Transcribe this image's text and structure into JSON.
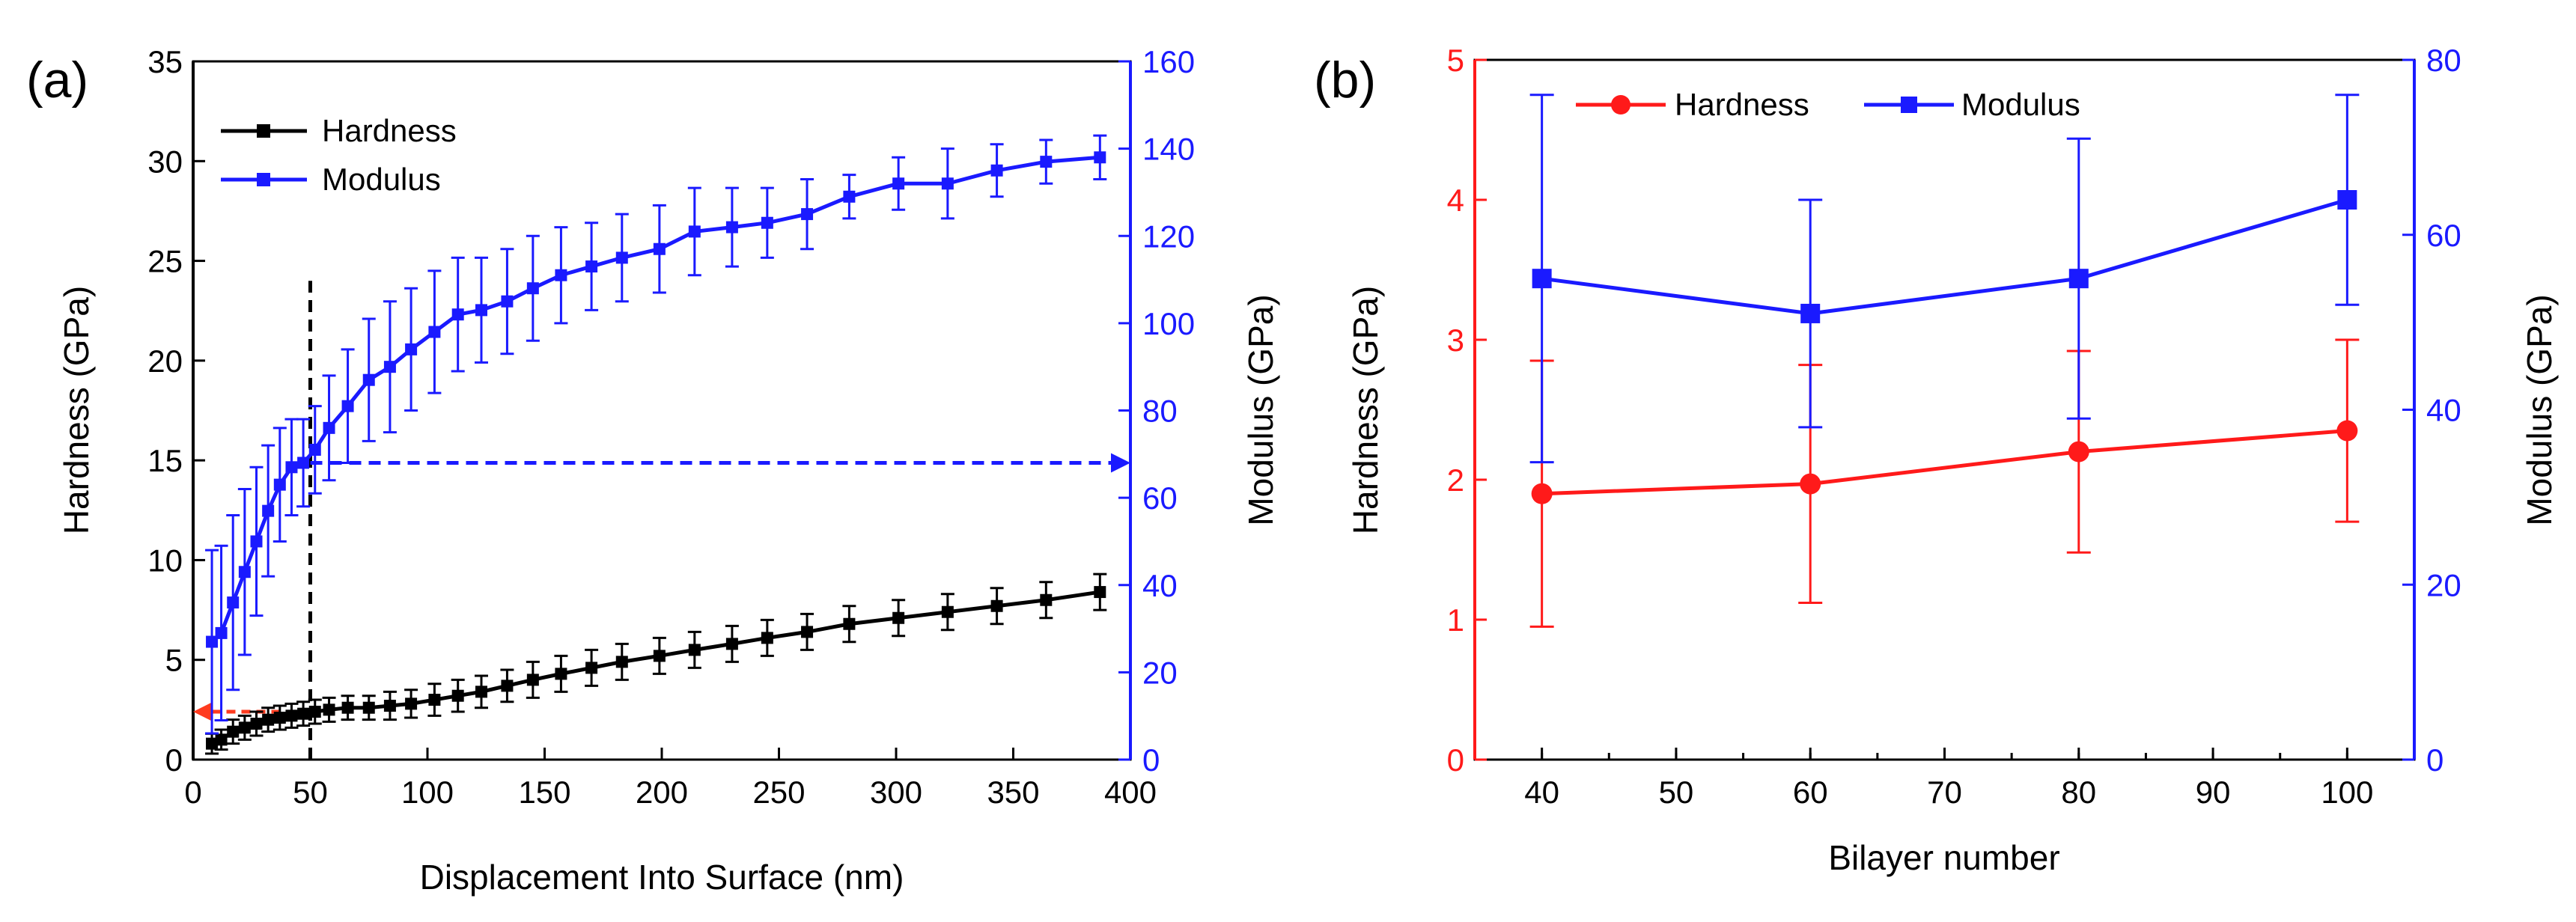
{
  "chart_data": [
    {
      "panel": "(a)",
      "type": "line",
      "xlabel": "Displacement Into Surface (nm)",
      "ylabel": "Hardness (GPa)",
      "y2label": "Modulus (GPa)",
      "xlim": [
        0,
        400
      ],
      "ylim": [
        0,
        35
      ],
      "y2lim": [
        0,
        160
      ],
      "xticks": [
        "0",
        "50",
        "100",
        "150",
        "200",
        "250",
        "300",
        "350",
        "400"
      ],
      "yticks": [
        "0",
        "5",
        "10",
        "15",
        "20",
        "25",
        "30",
        "35"
      ],
      "y2ticks": [
        "0",
        "20",
        "40",
        "60",
        "80",
        "100",
        "120",
        "140",
        "160"
      ],
      "legend": "top-left",
      "colors": {
        "hardness": "#000000",
        "modulus": "#1a1aff",
        "left_arrow": "#ff3b1f",
        "right_arrow": "#1a1aff"
      },
      "x": [
        8,
        12,
        17,
        22,
        27,
        32,
        37,
        42,
        47,
        52,
        58,
        66,
        75,
        84,
        93,
        103,
        113,
        123,
        134,
        145,
        157,
        170,
        183,
        199,
        214,
        230,
        245,
        262,
        280,
        301,
        322,
        343,
        364,
        387
      ],
      "series": [
        {
          "name": "Hardness",
          "axis": "left",
          "marker": "square",
          "values": [
            0.8,
            1.0,
            1.4,
            1.6,
            1.8,
            2.0,
            2.1,
            2.2,
            2.3,
            2.4,
            2.5,
            2.6,
            2.6,
            2.7,
            2.8,
            3.0,
            3.2,
            3.4,
            3.7,
            4.0,
            4.3,
            4.6,
            4.9,
            5.2,
            5.5,
            5.8,
            6.1,
            6.4,
            6.8,
            7.1,
            7.4,
            7.7,
            8.0,
            8.4
          ],
          "errors": [
            0.5,
            0.5,
            0.6,
            0.6,
            0.6,
            0.6,
            0.6,
            0.6,
            0.6,
            0.6,
            0.6,
            0.6,
            0.6,
            0.7,
            0.7,
            0.8,
            0.8,
            0.8,
            0.8,
            0.9,
            0.9,
            0.9,
            0.9,
            0.9,
            0.9,
            0.9,
            0.9,
            0.9,
            0.9,
            0.9,
            0.9,
            0.9,
            0.9,
            0.9
          ]
        },
        {
          "name": "Modulus",
          "axis": "right",
          "marker": "square",
          "values": [
            27,
            29,
            36,
            43,
            50,
            57,
            63,
            67,
            68,
            71,
            76,
            81,
            87,
            90,
            94,
            98,
            102,
            103,
            105,
            108,
            111,
            113,
            115,
            117,
            121,
            122,
            123,
            125,
            129,
            132,
            132,
            135,
            137,
            138
          ],
          "errors": [
            21,
            20,
            20,
            19,
            17,
            15,
            13,
            11,
            10,
            10,
            12,
            13,
            14,
            15,
            14,
            14,
            13,
            12,
            12,
            12,
            11,
            10,
            10,
            10,
            10,
            9,
            8,
            8,
            5,
            6,
            8,
            6,
            5,
            5
          ]
        }
      ],
      "annotations": [
        {
          "type": "vertical_dashed_line",
          "x": 50,
          "from_y": 0,
          "to_y": 24
        },
        {
          "type": "dashed_arrow",
          "axis": "right",
          "from_x": 50,
          "to_x": 400,
          "y": 68,
          "direction": "right"
        },
        {
          "type": "dashed_arrow",
          "axis": "left",
          "from_x": 50,
          "to_x": 0,
          "y": 2.4,
          "direction": "left"
        }
      ]
    },
    {
      "panel": "(b)",
      "type": "line",
      "xlabel": "Bilayer number",
      "ylabel": "Hardness (GPa)",
      "y2label": "Modulus (GPa)",
      "xlim": [
        35,
        105
      ],
      "ylim": [
        0,
        5
      ],
      "y2lim": [
        0,
        80
      ],
      "xticks": [
        "40",
        "50",
        "60",
        "70",
        "80",
        "90",
        "100"
      ],
      "yticks": [
        "0",
        "1",
        "2",
        "3",
        "4",
        "5"
      ],
      "y2ticks": [
        "0",
        "20",
        "40",
        "60",
        "80"
      ],
      "legend": "top",
      "colors": {
        "hardness": "#ff1a1a",
        "modulus": "#1a1aff"
      },
      "x": [
        40,
        60,
        80,
        100
      ],
      "series": [
        {
          "name": "Hardness",
          "axis": "left",
          "marker": "circle",
          "values": [
            1.9,
            1.97,
            2.2,
            2.35
          ],
          "errors": [
            0.95,
            0.85,
            0.72,
            0.65
          ]
        },
        {
          "name": "Modulus",
          "axis": "right",
          "marker": "square",
          "values": [
            55,
            51,
            55,
            64
          ],
          "errors": [
            21,
            13,
            16,
            12
          ]
        }
      ]
    }
  ]
}
